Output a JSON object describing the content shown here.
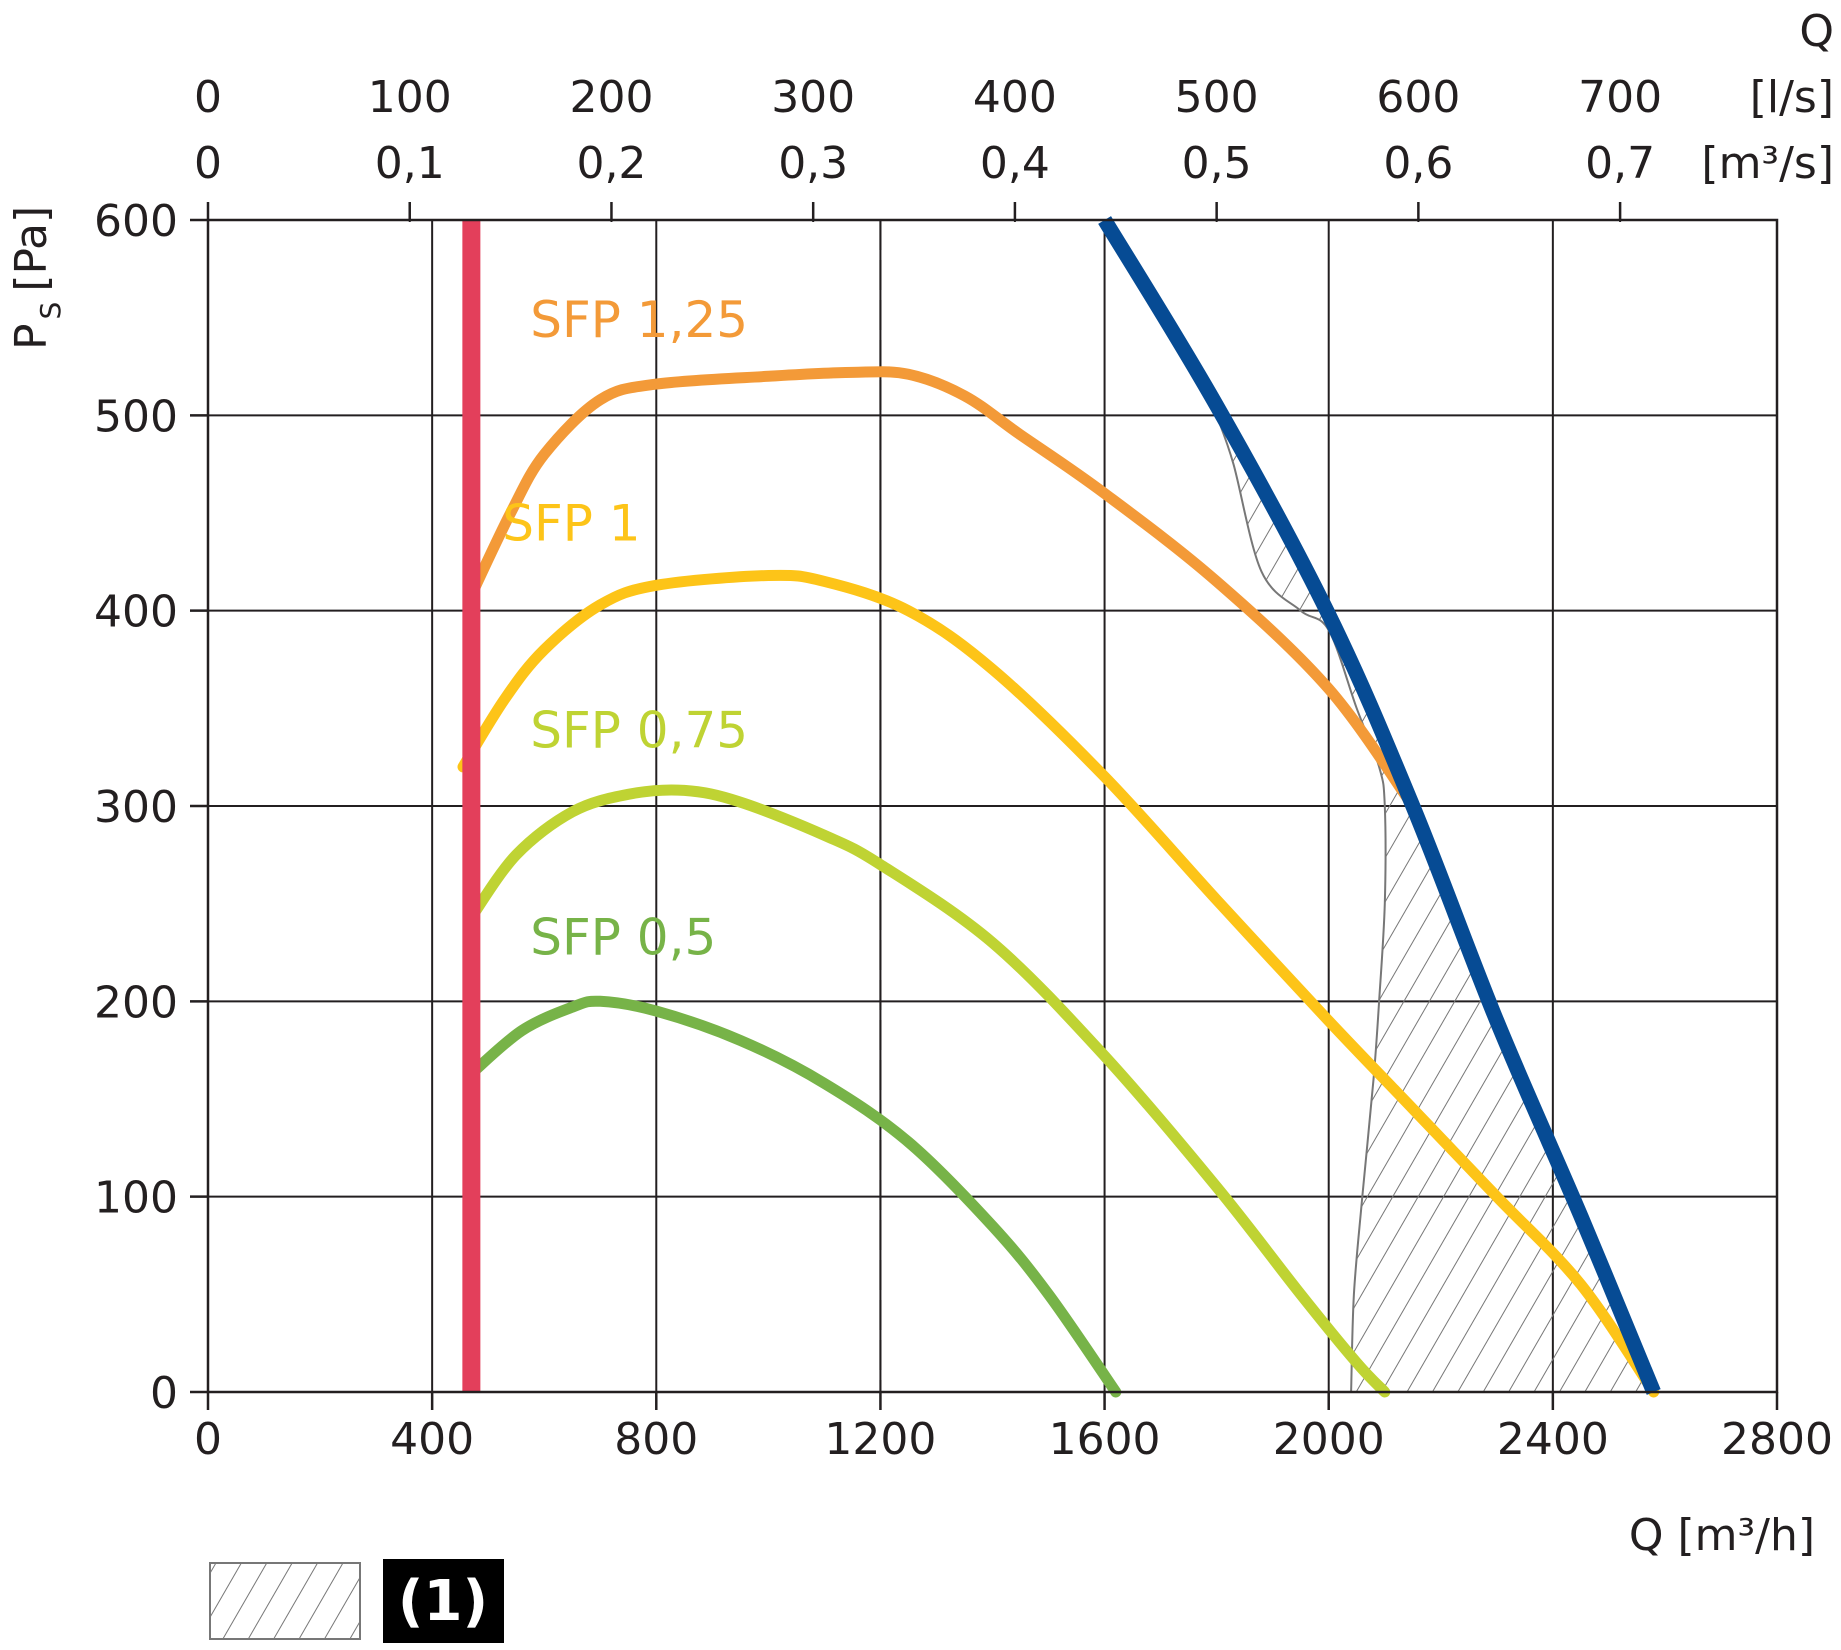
{
  "chart_data": {
    "type": "line",
    "x_axis": {
      "label": "Q [m³/h]",
      "min": 0,
      "max": 2800,
      "ticks": [
        "0",
        "400",
        "800",
        "1200",
        "1600",
        "2000",
        "2400",
        "2800"
      ],
      "tick_values": [
        0,
        400,
        800,
        1200,
        1600,
        2000,
        2400,
        2800
      ]
    },
    "y_axis": {
      "label": "P",
      "label_subscript": "S",
      "label_unit": "[Pa]",
      "min": 0,
      "max": 600,
      "ticks": [
        "0",
        "100",
        "200",
        "300",
        "400",
        "500",
        "600"
      ],
      "tick_values": [
        0,
        100,
        200,
        300,
        400,
        500,
        600
      ]
    },
    "top_axis": {
      "title": "Q",
      "ls_unit": "[l/s]",
      "m3s_unit": "[m³/s]",
      "ls_ticks": [
        "0",
        "100",
        "200",
        "300",
        "400",
        "500",
        "600",
        "700"
      ],
      "m3s_ticks": [
        "0",
        "0,1",
        "0,2",
        "0,3",
        "0,4",
        "0,5",
        "0,6",
        "0,7"
      ],
      "tick_values_ls": [
        0,
        100,
        200,
        300,
        400,
        500,
        600,
        700
      ]
    },
    "grid": true,
    "series": [
      {
        "name": "SFP 1,25",
        "color": "#f39a38",
        "label_at": [
          700,
          540
        ],
        "points": [
          [
            470,
            408
          ],
          [
            540,
            450
          ],
          [
            600,
            480
          ],
          [
            700,
            508
          ],
          [
            800,
            516
          ],
          [
            1000,
            520
          ],
          [
            1150,
            522
          ],
          [
            1250,
            521
          ],
          [
            1350,
            510
          ],
          [
            1450,
            490
          ],
          [
            1600,
            460
          ],
          [
            1800,
            415
          ],
          [
            2000,
            360
          ],
          [
            2150,
            300
          ]
        ]
      },
      {
        "name": "SFP 1",
        "color": "#fdc418",
        "label_at": [
          650,
          436
        ],
        "points": [
          [
            455,
            320
          ],
          [
            530,
            355
          ],
          [
            600,
            380
          ],
          [
            700,
            403
          ],
          [
            800,
            413
          ],
          [
            1000,
            418
          ],
          [
            1100,
            415
          ],
          [
            1250,
            400
          ],
          [
            1400,
            370
          ],
          [
            1600,
            315
          ],
          [
            1800,
            252
          ],
          [
            2000,
            190
          ],
          [
            2150,
            145
          ],
          [
            2300,
            100
          ],
          [
            2450,
            55
          ],
          [
            2580,
            0
          ]
        ]
      },
      {
        "name": "SFP 0,75",
        "color": "#bfd333",
        "label_at": [
          700,
          330
        ],
        "points": [
          [
            470,
            243
          ],
          [
            550,
            275
          ],
          [
            650,
            297
          ],
          [
            750,
            306
          ],
          [
            850,
            308
          ],
          [
            950,
            302
          ],
          [
            1100,
            285
          ],
          [
            1200,
            270
          ],
          [
            1400,
            230
          ],
          [
            1600,
            172
          ],
          [
            1800,
            105
          ],
          [
            1950,
            50
          ],
          [
            2050,
            15
          ],
          [
            2100,
            0
          ]
        ]
      },
      {
        "name": "SFP 0,5",
        "color": "#77b348",
        "label_at": [
          700,
          224
        ],
        "points": [
          [
            470,
            163
          ],
          [
            560,
            185
          ],
          [
            650,
            197
          ],
          [
            700,
            200
          ],
          [
            800,
            195
          ],
          [
            950,
            180
          ],
          [
            1100,
            158
          ],
          [
            1250,
            128
          ],
          [
            1400,
            85
          ],
          [
            1500,
            50
          ],
          [
            1620,
            0
          ]
        ]
      }
    ],
    "vertical_line": {
      "x": 470,
      "color": "#e33f5b"
    },
    "max_curve": {
      "color": "#064b94",
      "points": [
        [
          1600,
          600
        ],
        [
          1800,
          505
        ],
        [
          2000,
          398
        ],
        [
          2150,
          300
        ],
        [
          2300,
          190
        ],
        [
          2450,
          90
        ],
        [
          2580,
          0
        ]
      ]
    },
    "hatched_region": {
      "boundary_left": [
        [
          1800,
          500
        ],
        [
          1830,
          475
        ],
        [
          1880,
          420
        ],
        [
          1950,
          400
        ],
        [
          2000,
          390
        ],
        [
          2050,
          350
        ],
        [
          2090,
          320
        ],
        [
          2100,
          300
        ],
        [
          2100,
          250
        ],
        [
          2090,
          200
        ],
        [
          2080,
          160
        ],
        [
          2060,
          100
        ],
        [
          2045,
          50
        ],
        [
          2040,
          0
        ]
      ],
      "boundary_right": [
        [
          1800,
          505
        ],
        [
          2000,
          398
        ],
        [
          2150,
          300
        ],
        [
          2300,
          190
        ],
        [
          2450,
          90
        ],
        [
          2580,
          0
        ]
      ]
    },
    "legend": {
      "items": [
        {
          "swatch": "hatched",
          "label": "(1)"
        }
      ]
    }
  }
}
